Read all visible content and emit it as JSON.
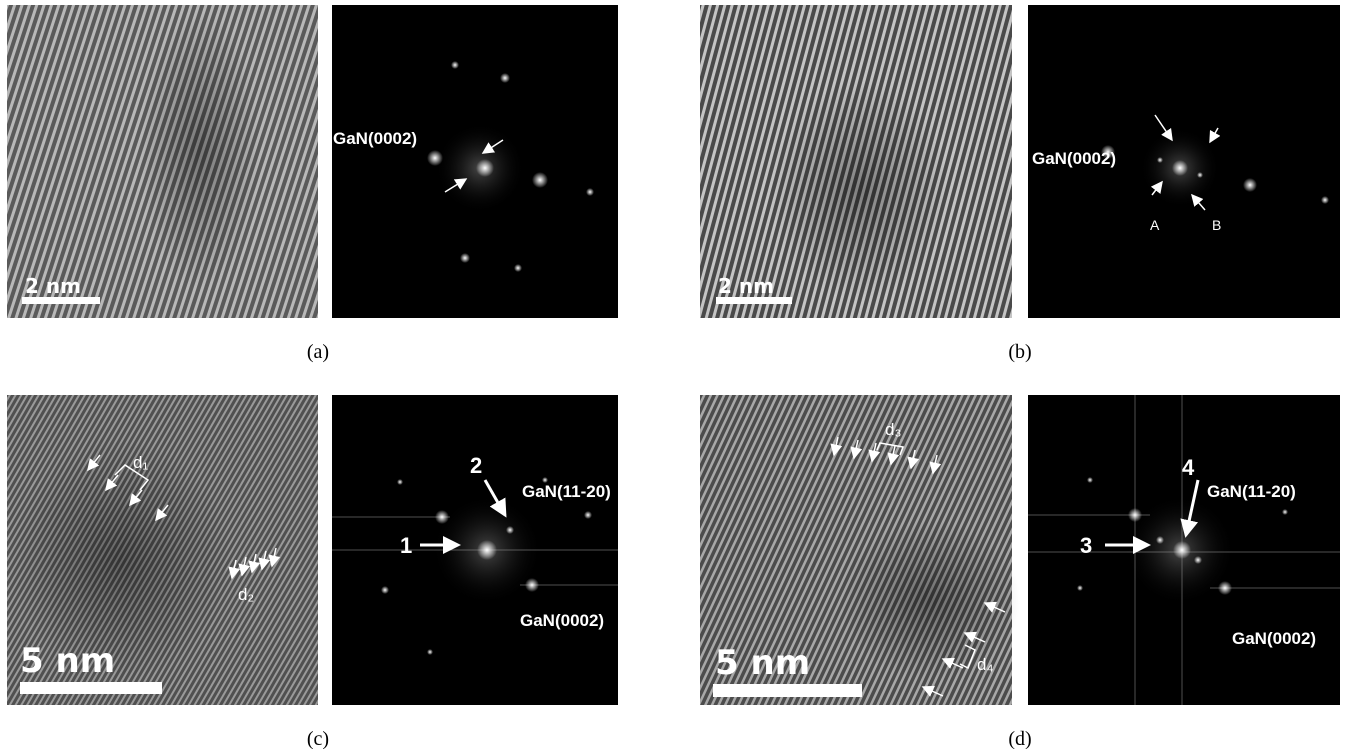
{
  "panels": [
    {
      "label": "(a)",
      "scale_bar": "2 nm",
      "annotations": [
        "GaN(0002)"
      ]
    },
    {
      "label": "(b)",
      "scale_bar": "2 nm",
      "annotations": [
        "GaN(0002)",
        "A",
        "B"
      ]
    },
    {
      "label": "(c)",
      "scale_bar": "5 nm",
      "annotations": [
        "d₁",
        "d₂",
        "2",
        "GaN(11-20)",
        "1",
        "GaN(0002)"
      ]
    },
    {
      "label": "(d)",
      "scale_bar": "5 nm",
      "annotations": [
        "d₃",
        "d₄",
        "4",
        "GaN(11-20)",
        "3",
        "GaN(0002)"
      ]
    }
  ]
}
